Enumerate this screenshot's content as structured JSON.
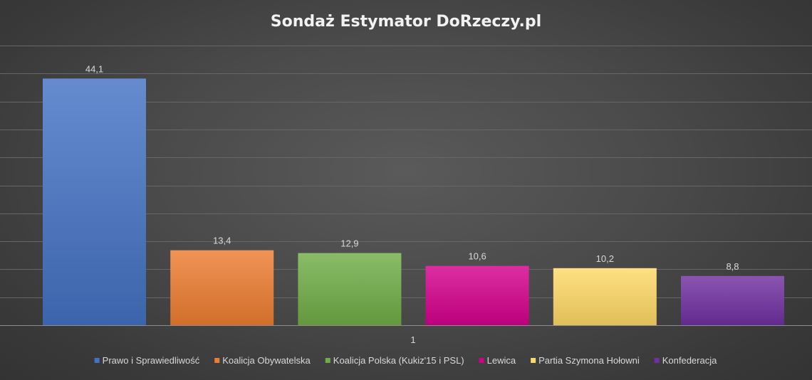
{
  "chart_data": {
    "type": "bar",
    "title": "Sondaż Estymator DoRzeczy.pl",
    "categories": [
      "1"
    ],
    "ylim": [
      0,
      50
    ],
    "grid": true,
    "legend_position": "bottom",
    "series": [
      {
        "name": "Prawo i Sprawiedliwość",
        "values": [
          44.1
        ],
        "value_label": "44,1",
        "color": "#4472c4"
      },
      {
        "name": "Koalicja Obywatelska",
        "values": [
          13.4
        ],
        "value_label": "13,4",
        "color": "#ed7d31"
      },
      {
        "name": "Koalicja Polska (Kukiz'15 i PSL)",
        "values": [
          12.9
        ],
        "value_label": "12,9",
        "color": "#70ad47"
      },
      {
        "name": "Lewica",
        "values": [
          10.6
        ],
        "value_label": "10,6",
        "color": "#d4008c"
      },
      {
        "name": "Partia Szymona Hołowni",
        "values": [
          10.2
        ],
        "value_label": "10,2",
        "color": "#ffd966"
      },
      {
        "name": "Konfederacja",
        "values": [
          8.8
        ],
        "value_label": "8,8",
        "color": "#7030a0"
      }
    ]
  }
}
